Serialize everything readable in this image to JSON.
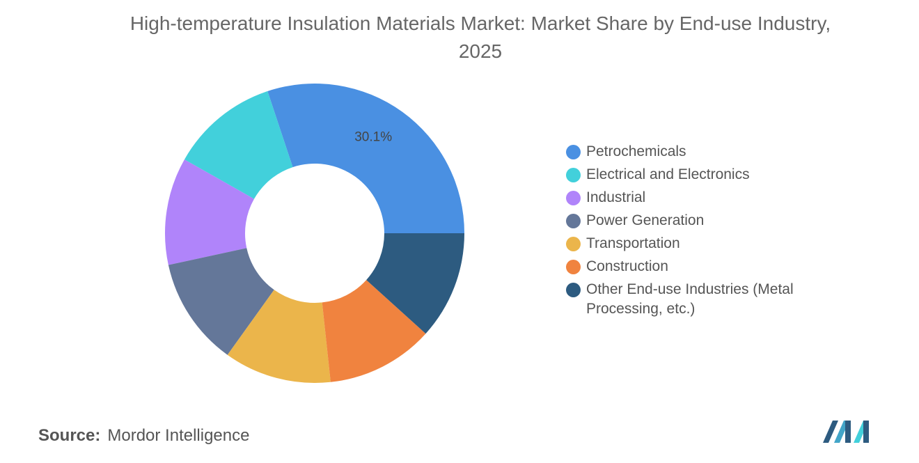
{
  "chart_data": {
    "type": "donut",
    "title": "High-temperature Insulation Materials Market: Market Share by End-use Industry, 2025",
    "categories": [
      "Petrochemicals",
      "Electrical and Electronics",
      "Industrial",
      "Power Generation",
      "Transportation",
      "Construction",
      "Other End-use Industries (Metal Processing, etc.)"
    ],
    "values": [
      30.1,
      11.7,
      11.6,
      11.7,
      11.6,
      11.6,
      11.7
    ],
    "value_labels": [
      "30.1%",
      null,
      null,
      null,
      null,
      null,
      null
    ],
    "colors": [
      "#4a90e2",
      "#42d0db",
      "#b084fa",
      "#647799",
      "#ebb54b",
      "#f0833f",
      "#2d5b80"
    ]
  },
  "source_label": "Source:",
  "source": "Mordor Intelligence"
}
